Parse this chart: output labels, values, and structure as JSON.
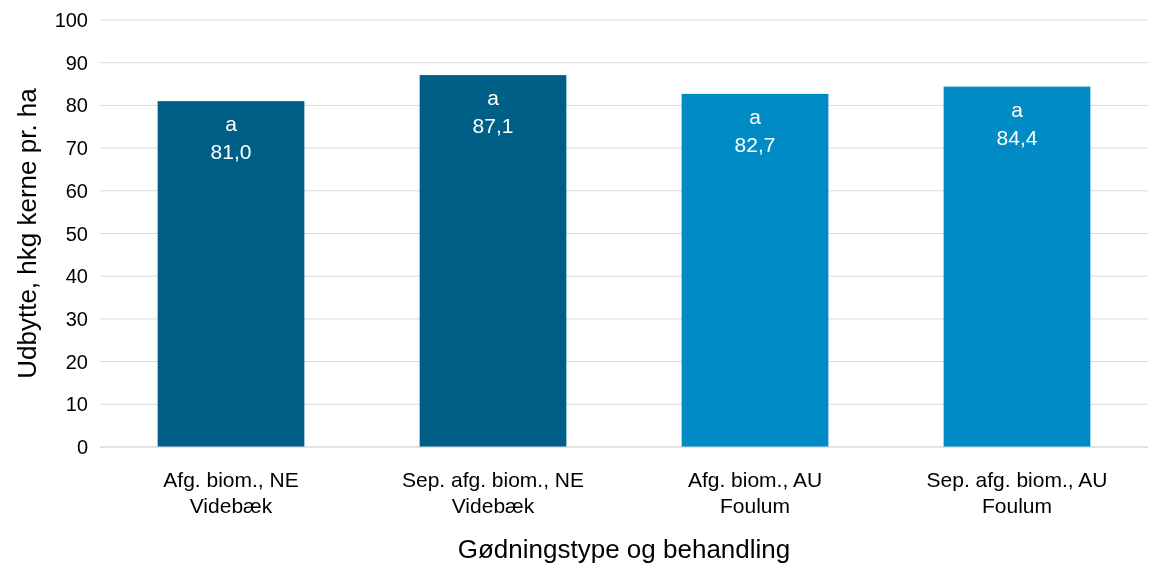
{
  "chart_data": {
    "type": "bar",
    "xlabel": "Gødningstype og behandling",
    "ylabel": "Udbytte, hkg kerne pr. ha",
    "categories": [
      "Afg. biom., NE Videbæk",
      "Sep. afg. biom., NE Videbæk",
      "Afg. biom., AU Foulum",
      "Sep. afg. biom., AU Foulum"
    ],
    "values": [
      81.0,
      87.1,
      82.7,
      84.4
    ],
    "colors": [
      "#005f87",
      "#005f87",
      "#008bc4",
      "#008bc4"
    ],
    "value_labels": [
      "81,0",
      "87,1",
      "82,7",
      "84,4"
    ],
    "annotations": [
      {
        "text": "a",
        "x": "Afg. biom., NE Videbæk",
        "y": 81.0
      },
      {
        "text": "a",
        "x": "Sep. afg. biom., NE Videbæk",
        "y": 87.1
      },
      {
        "text": "a",
        "x": "Afg. biom., AU Foulum",
        "y": 82.7
      },
      {
        "text": "a",
        "x": "Sep. afg. biom., AU Foulum",
        "y": 84.4
      }
    ],
    "ylim": [
      0,
      100
    ],
    "yticks": [
      0,
      10,
      20,
      30,
      40,
      50,
      60,
      70,
      80,
      90,
      100
    ],
    "grid": "y"
  }
}
